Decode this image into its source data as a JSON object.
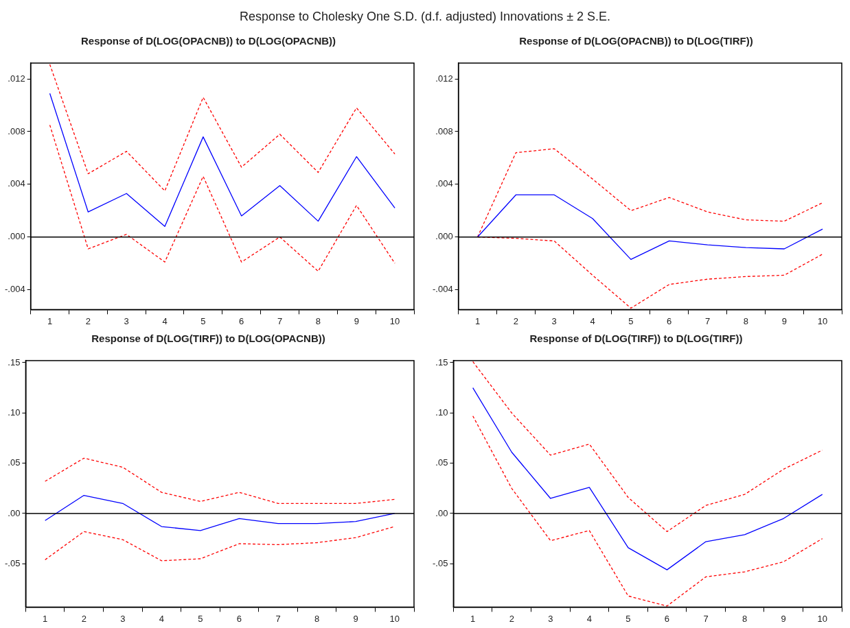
{
  "chart_data": [
    {
      "type": "line",
      "title": "Response of D(LOG(OPACNB)) to D(LOG(OPACNB))",
      "annotations": [
        "Response to Cholesky One S.D. (d.f. adjusted) Innovations ± 2 S.E."
      ],
      "categories": [
        "1",
        "2",
        "3",
        "4",
        "5",
        "6",
        "7",
        "8",
        "9",
        "10"
      ],
      "ylim": [
        -0.0055,
        0.0132
      ],
      "yticks": [
        {
          "value": -0.004,
          "label": "-.004"
        },
        {
          "value": 0,
          "label": ".000"
        },
        {
          "value": 0.004,
          "label": ".004"
        },
        {
          "value": 0.008,
          "label": ".008"
        },
        {
          "value": 0.012,
          "label": ".012"
        }
      ],
      "grid": false,
      "legend": false,
      "marker": "none",
      "ref_lines": [
        {
          "axis": "y",
          "value": 0,
          "color": "#000000"
        }
      ],
      "series": [
        {
          "color": "#0000ff",
          "line_style": "solid",
          "values": [
            0.0109,
            0.0019,
            0.0033,
            0.0008,
            0.0076,
            0.0016,
            0.0039,
            0.0012,
            0.0061,
            0.0022
          ]
        },
        {
          "color": "#ff0000",
          "line_style": "dashed",
          "values": [
            0.0131,
            0.0048,
            0.0065,
            0.0035,
            0.0106,
            0.0053,
            0.0078,
            0.0049,
            0.0098,
            0.0063
          ]
        },
        {
          "color": "#ff0000",
          "line_style": "dashed",
          "values": [
            0.0085,
            -0.0009,
            0.0002,
            -0.0019,
            0.0046,
            -0.0019,
            0.0,
            -0.0026,
            0.0024,
            -0.002
          ]
        }
      ]
    },
    {
      "type": "line",
      "title": "Response of D(LOG(OPACNB)) to D(LOG(TIRF))",
      "categories": [
        "1",
        "2",
        "3",
        "4",
        "5",
        "6",
        "7",
        "8",
        "9",
        "10"
      ],
      "ylim": [
        -0.0055,
        0.0132
      ],
      "yticks": [
        {
          "value": -0.004,
          "label": "-.004"
        },
        {
          "value": 0,
          "label": ".000"
        },
        {
          "value": 0.004,
          "label": ".004"
        },
        {
          "value": 0.008,
          "label": ".008"
        },
        {
          "value": 0.012,
          "label": ".012"
        }
      ],
      "grid": false,
      "legend": false,
      "marker": "none",
      "ref_lines": [
        {
          "axis": "y",
          "value": 0,
          "color": "#000000"
        }
      ],
      "series": [
        {
          "color": "#0000ff",
          "line_style": "solid",
          "values": [
            0.0,
            0.0032,
            0.0032,
            0.0014,
            -0.0017,
            -0.0003,
            -0.0006,
            -0.0008,
            -0.0009,
            0.0006
          ]
        },
        {
          "color": "#ff0000",
          "line_style": "dashed",
          "values": [
            0.0,
            0.0064,
            0.0067,
            0.0044,
            0.002,
            0.003,
            0.0019,
            0.0013,
            0.0012,
            0.0026
          ]
        },
        {
          "color": "#ff0000",
          "line_style": "dashed",
          "values": [
            0.0,
            -0.0001,
            -0.0003,
            -0.0029,
            -0.0054,
            -0.0036,
            -0.0032,
            -0.003,
            -0.0029,
            -0.0013
          ]
        }
      ]
    },
    {
      "type": "line",
      "title": "Response of D(LOG(TIRF)) to D(LOG(OPACNB))",
      "categories": [
        "1",
        "2",
        "3",
        "4",
        "5",
        "6",
        "7",
        "8",
        "9",
        "10"
      ],
      "ylim": [
        -0.093,
        0.152
      ],
      "yticks": [
        {
          "value": -0.05,
          "label": "-.05"
        },
        {
          "value": 0,
          "label": ".00"
        },
        {
          "value": 0.05,
          "label": ".05"
        },
        {
          "value": 0.1,
          "label": ".10"
        },
        {
          "value": 0.15,
          "label": ".15"
        }
      ],
      "grid": false,
      "legend": false,
      "marker": "none",
      "ref_lines": [
        {
          "axis": "y",
          "value": 0,
          "color": "#000000"
        }
      ],
      "series": [
        {
          "color": "#0000ff",
          "line_style": "solid",
          "values": [
            -0.007,
            0.018,
            0.01,
            -0.013,
            -0.017,
            -0.005,
            -0.01,
            -0.01,
            -0.008,
            0.0
          ]
        },
        {
          "color": "#ff0000",
          "line_style": "dashed",
          "values": [
            0.032,
            0.055,
            0.046,
            0.021,
            0.012,
            0.021,
            0.01,
            0.01,
            0.01,
            0.014
          ]
        },
        {
          "color": "#ff0000",
          "line_style": "dashed",
          "values": [
            -0.046,
            -0.018,
            -0.026,
            -0.047,
            -0.045,
            -0.03,
            -0.031,
            -0.029,
            -0.024,
            -0.013
          ]
        }
      ]
    },
    {
      "type": "line",
      "title": "Response of D(LOG(TIRF)) to D(LOG(TIRF))",
      "categories": [
        "1",
        "2",
        "3",
        "4",
        "5",
        "6",
        "7",
        "8",
        "9",
        "10"
      ],
      "ylim": [
        -0.093,
        0.152
      ],
      "yticks": [
        {
          "value": -0.05,
          "label": "-.05"
        },
        {
          "value": 0,
          "label": ".00"
        },
        {
          "value": 0.05,
          "label": ".05"
        },
        {
          "value": 0.1,
          "label": ".10"
        },
        {
          "value": 0.15,
          "label": ".15"
        }
      ],
      "grid": false,
      "legend": false,
      "marker": "none",
      "ref_lines": [
        {
          "axis": "y",
          "value": 0,
          "color": "#000000"
        }
      ],
      "series": [
        {
          "color": "#0000ff",
          "line_style": "solid",
          "values": [
            0.125,
            0.061,
            0.015,
            0.026,
            -0.034,
            -0.056,
            -0.028,
            -0.021,
            -0.005,
            0.019
          ]
        },
        {
          "color": "#ff0000",
          "line_style": "dashed",
          "values": [
            0.151,
            0.1,
            0.058,
            0.069,
            0.016,
            -0.018,
            0.008,
            0.019,
            0.044,
            0.063
          ]
        },
        {
          "color": "#ff0000",
          "line_style": "dashed",
          "values": [
            0.097,
            0.025,
            -0.027,
            -0.017,
            -0.082,
            -0.092,
            -0.063,
            -0.058,
            -0.048,
            -0.025
          ]
        }
      ]
    }
  ]
}
